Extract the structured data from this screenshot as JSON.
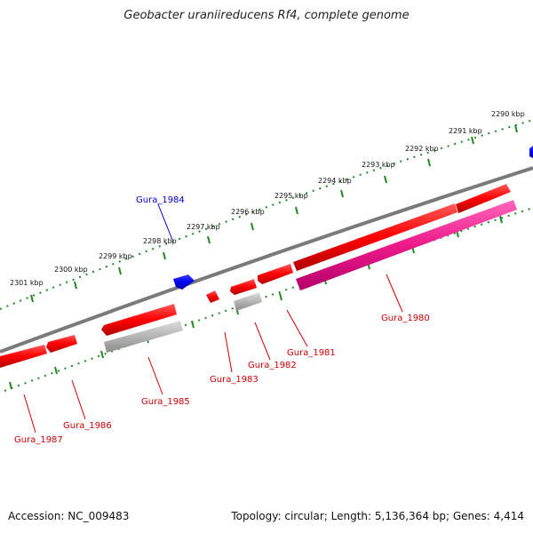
{
  "title": "Geobacter uraniireducens Rf4, complete genome",
  "footer": {
    "accession": "Accession: NC_009483",
    "summary": "Topology: circular; Length: 5,136,364 bp; Genes: 4,414"
  },
  "colors": {
    "forward_gene": "#ff0000",
    "reverse_gene": "#ff0000",
    "blue_gene": "#1010ee",
    "pink_gene": "#ff2299",
    "gray_gene": "#aaaaaa",
    "backbone": "#7a7a7a",
    "ticks": "#228822",
    "label_red": "#cc0000",
    "label_blue": "#0000cc"
  },
  "scale_ticks": [
    "2290 kbp",
    "2291 kbp",
    "2292 kbp",
    "2293 kbp",
    "2294 kbp",
    "2295 kbp",
    "2296 kbp",
    "2297 kbp",
    "2298 kbp",
    "2299 kbp",
    "2300 kbp",
    "2301 kbp"
  ],
  "gene_labels": {
    "g1980": "Gura_1980",
    "g1981": "Gura_1981",
    "g1982": "Gura_1982",
    "g1983": "Gura_1983",
    "g1984": "Gura_1984",
    "g1985": "Gura_1985",
    "g1986": "Gura_1986",
    "g1987": "Gura_1987"
  }
}
